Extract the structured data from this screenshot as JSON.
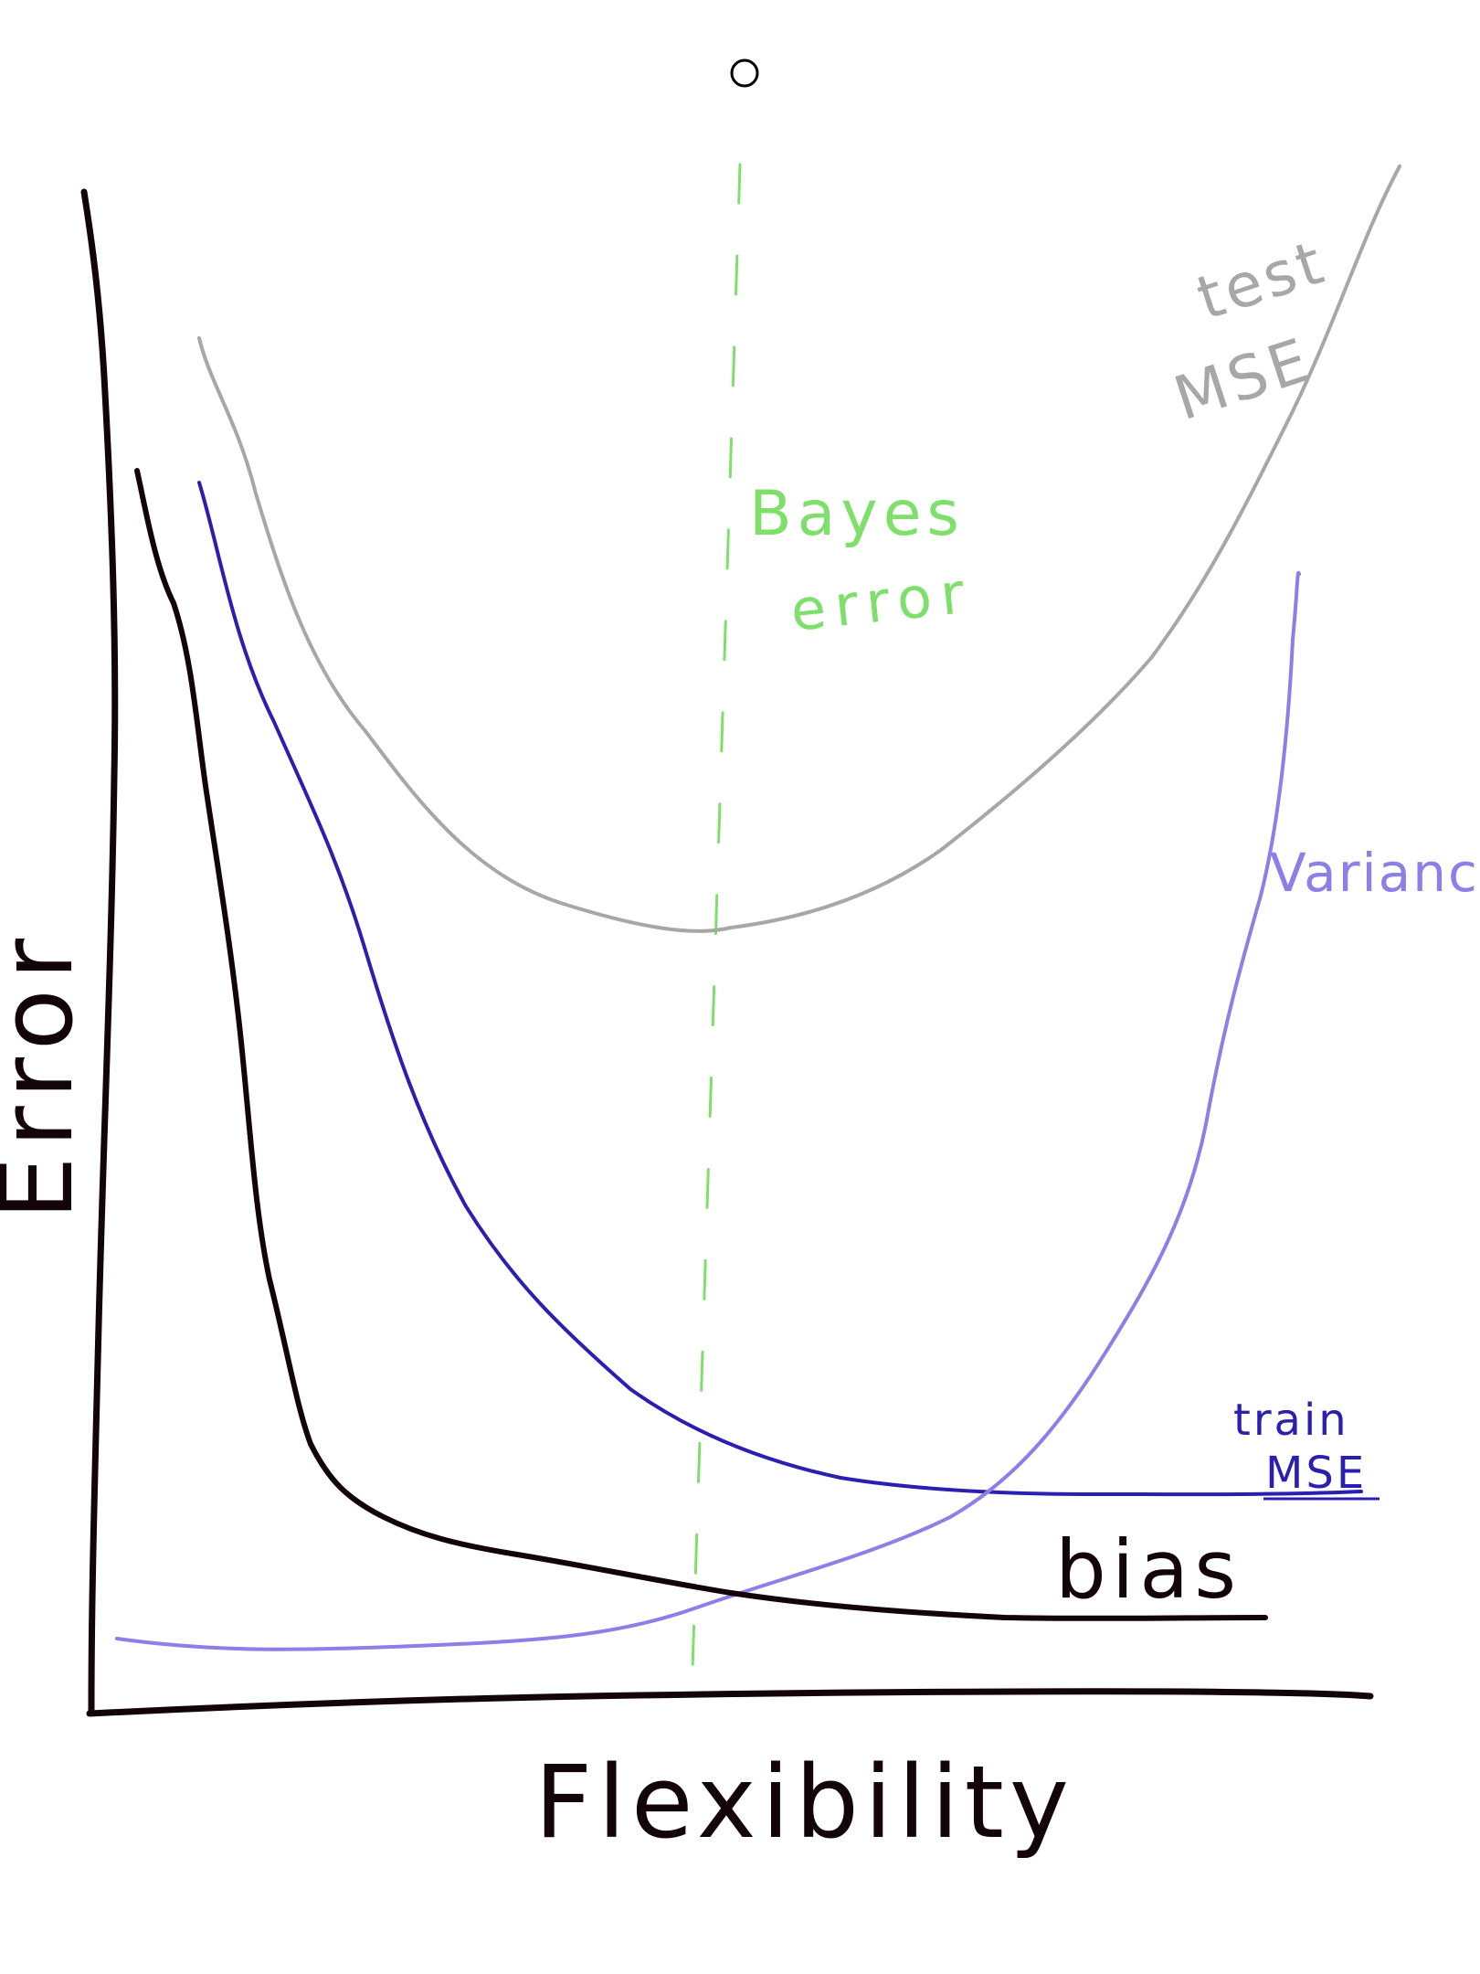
{
  "sketch": {
    "top_marker": "circle",
    "labels": {
      "y_axis": "Error",
      "x_axis": "Flexibility",
      "bayes": [
        "Bayes",
        "error"
      ],
      "test": [
        "test",
        "MSE"
      ],
      "variance": "Variance",
      "train": [
        "train",
        "MSE"
      ],
      "bias": "bias"
    },
    "colors": {
      "axes": "#120408",
      "bias": "#120408",
      "train": "#2a1fb0",
      "variance": "#8b7fe8",
      "test": "#a7a7a7",
      "bayes": "#7ee06a"
    }
  }
}
